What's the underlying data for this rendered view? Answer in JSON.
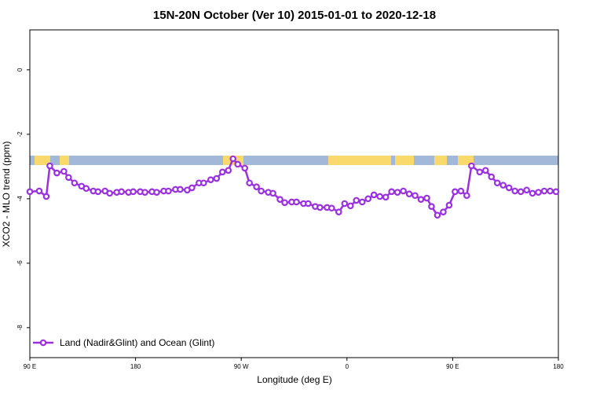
{
  "chart_data": {
    "type": "line",
    "title": "15N-20N October (Ver 10)   2015-01-01 to 2020-12-18",
    "xlabel": "Longitude (deg E)",
    "ylabel": "XCO2 - MLO trend (ppm)",
    "xlim": [
      90,
      540
    ],
    "ylim": [
      -8.93,
      1.24
    ],
    "xticks": [
      {
        "value": 90,
        "label": "90 E"
      },
      {
        "value": 180,
        "label": "180"
      },
      {
        "value": 270,
        "label": "90 W"
      },
      {
        "value": 360,
        "label": "0"
      },
      {
        "value": 450,
        "label": "90 E"
      },
      {
        "value": 540,
        "label": "180"
      }
    ],
    "yticks": [
      0,
      -2,
      -4,
      -6,
      -8
    ],
    "legend": "lower left",
    "x": [
      90,
      98,
      104,
      107,
      113,
      119,
      123,
      128,
      134,
      138,
      144,
      148,
      154,
      158,
      164,
      168,
      174,
      178,
      184,
      188,
      194,
      198,
      204,
      208,
      214,
      218,
      224,
      228,
      234,
      238,
      244,
      249,
      254,
      259,
      263,
      267,
      273,
      277,
      283,
      287,
      293,
      297,
      303,
      307,
      313,
      317,
      323,
      327,
      333,
      337,
      343,
      347,
      353,
      358,
      363,
      368,
      373,
      378,
      383,
      388,
      393,
      398,
      403,
      408,
      413,
      418,
      423,
      428,
      432,
      437,
      442,
      447,
      452,
      457,
      462,
      466,
      473,
      478,
      483,
      488,
      493,
      498,
      503,
      508,
      513,
      518,
      523,
      528,
      533,
      538
    ],
    "series": [
      {
        "name": "Land (Nadir&Glint) and Ocean (Glint)",
        "color": "#9b30e0",
        "values": [
          -3.78,
          -3.76,
          -3.93,
          -2.98,
          -3.2,
          -3.15,
          -3.34,
          -3.51,
          -3.61,
          -3.68,
          -3.76,
          -3.78,
          -3.76,
          -3.83,
          -3.8,
          -3.78,
          -3.8,
          -3.78,
          -3.78,
          -3.8,
          -3.78,
          -3.8,
          -3.76,
          -3.76,
          -3.71,
          -3.71,
          -3.73,
          -3.66,
          -3.51,
          -3.51,
          -3.41,
          -3.37,
          -3.17,
          -3.12,
          -2.76,
          -2.93,
          -3.05,
          -3.51,
          -3.63,
          -3.76,
          -3.8,
          -3.83,
          -4.02,
          -4.12,
          -4.1,
          -4.1,
          -4.15,
          -4.15,
          -4.24,
          -4.27,
          -4.27,
          -4.29,
          -4.41,
          -4.15,
          -4.22,
          -4.05,
          -4.1,
          -4.0,
          -3.88,
          -3.93,
          -3.95,
          -3.78,
          -3.8,
          -3.76,
          -3.85,
          -3.9,
          -4.02,
          -3.98,
          -4.24,
          -4.51,
          -4.41,
          -4.2,
          -3.78,
          -3.76,
          -3.9,
          -2.98,
          -3.17,
          -3.12,
          -3.32,
          -3.51,
          -3.58,
          -3.66,
          -3.76,
          -3.78,
          -3.73,
          -3.83,
          -3.8,
          -3.76,
          -3.76,
          -3.78
        ]
      }
    ]
  }
}
